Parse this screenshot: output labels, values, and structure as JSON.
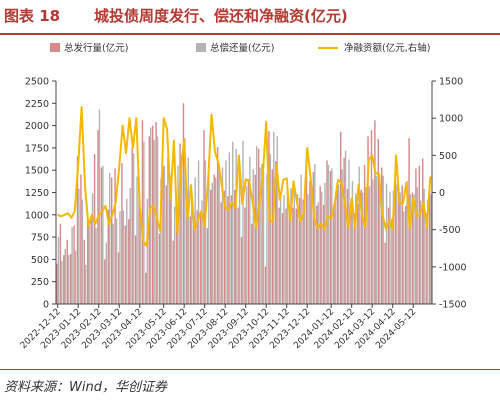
{
  "figure": {
    "label": "图表 18",
    "title": "城投债周度发行、偿还和净融资(亿元)",
    "source": "资料来源：Wind，华创证券"
  },
  "colors": {
    "issuance": "#d8898a",
    "repayment": "#b4b4b4",
    "net": "#f5b800",
    "title": "#b23a32"
  },
  "chart_data": {
    "type": "bar",
    "series": [
      {
        "name": "总发行量(亿元)",
        "type": "bar",
        "axis": "left",
        "values": [
          450,
          900,
          550,
          720,
          560,
          880,
          1660,
          1450,
          720,
          1000,
          980,
          1680,
          1950,
          1530,
          500,
          1060,
          1420,
          1520,
          580,
          1580,
          880,
          950,
          1760,
          770,
          1400,
          2060,
          350,
          1880,
          2000,
          2040,
          790,
          1540,
          1330,
          1310,
          710,
          1070,
          1800,
          2250,
          1210,
          980,
          960,
          1050,
          1010,
          1950,
          850,
          1280,
          1450,
          1760,
          1140,
          1270,
          1210,
          1220,
          1280,
          1080,
          750,
          1080,
          1400,
          900,
          1450,
          1740,
          1570,
          420,
          1940,
          1510,
          1600,
          1080,
          1020,
          1070,
          1100,
          1080,
          1070,
          1190,
          1170,
          1600,
          1380,
          1480,
          1100,
          1320,
          1110,
          1610,
          1490,
          1100,
          1300,
          1930,
          1640,
          1290,
          1110,
          1020,
          1120,
          1280,
          1560,
          1880,
          1950,
          2060,
          1850,
          1530,
          690,
          1080,
          960,
          1600,
          1250,
          1330,
          1100,
          1860,
          1250,
          1520,
          1550,
          1630,
          1020,
          1310
        ]
      },
      {
        "name": "总偿还量(亿元)",
        "type": "bar",
        "axis": "left",
        "values": [
          750,
          480,
          620,
          550,
          860,
          600,
          1290,
          1170,
          440,
          870,
          1240,
          850,
          2180,
          1550,
          690,
          1470,
          900,
          960,
          1040,
          1050,
          1180,
          1300,
          1690,
          1430,
          960,
          1820,
          1180,
          1980,
          1840,
          1880,
          1410,
          1550,
          1650,
          1450,
          1090,
          1550,
          1670,
          1860,
          1640,
          1240,
          1420,
          1610,
          1160,
          1610,
          1530,
          1360,
          1420,
          1560,
          1530,
          1610,
          1700,
          1820,
          1740,
          1510,
          1830,
          1320,
          1650,
          1510,
          1770,
          1530,
          1480,
          1460,
          1680,
          1930,
          1880,
          1240,
          1220,
          1320,
          1300,
          1270,
          1230,
          1450,
          1130,
          1230,
          1300,
          1570,
          1140,
          1260,
          1360,
          1560,
          1520,
          1160,
          1340,
          1510,
          1720,
          1620,
          1380,
          1240,
          1540,
          1250,
          1310,
          1320,
          1400,
          1440,
          1330,
          1440,
          1350,
          1260,
          1270,
          1340,
          1250,
          1040,
          1380,
          1230,
          1230,
          1310,
          1160,
          1290,
          1170,
          1230
        ]
      },
      {
        "name": "净融资额(亿元,右轴)",
        "type": "line",
        "axis": "right",
        "values": [
          -300,
          -320,
          -300,
          -280,
          -340,
          -250,
          380,
          1150,
          80,
          -450,
          -300,
          -420,
          -310,
          -250,
          -180,
          -430,
          -300,
          -130,
          350,
          900,
          530,
          1000,
          600,
          1000,
          -180,
          -650,
          -720,
          -210,
          -180,
          -350,
          -520,
          1000,
          850,
          -90,
          700,
          -540,
          300,
          700,
          -350,
          100,
          -500,
          -370,
          -250,
          -450,
          150,
          1050,
          550,
          400,
          100,
          -200,
          -230,
          -130,
          -210,
          500,
          -150,
          180,
          150,
          -120,
          -470,
          -150,
          230,
          950,
          -380,
          -390,
          380,
          -100,
          170,
          190,
          -380,
          150,
          -130,
          -390,
          -270,
          600,
          190,
          -330,
          -480,
          -420,
          -500,
          -320,
          -350,
          -160,
          170,
          130,
          -140,
          -470,
          -80,
          -480,
          100,
          -310,
          -470,
          440,
          500,
          260,
          250,
          -300,
          -490,
          -380,
          -500,
          500,
          -140,
          -150,
          130,
          -480,
          -70,
          -320,
          -300,
          -130,
          -470,
          210
        ]
      }
    ],
    "x_tick_labels": [
      "2022-12-12",
      "2023-01-12",
      "2023-02-12",
      "2023-03-12",
      "2023-04-12",
      "2023-05-12",
      "2023-06-12",
      "2023-07-12",
      "2023-08-12",
      "2023-09-12",
      "2023-10-12",
      "2023-11-12",
      "2023-12-12",
      "2024-01-12",
      "2024-02-12",
      "2024-03-12",
      "2024-04-12",
      "2024-05-12"
    ],
    "y_left": {
      "min": 0,
      "max": 2500,
      "ticks": [
        0,
        250,
        500,
        750,
        1000,
        1250,
        1500,
        1750,
        2000,
        2250,
        2500
      ]
    },
    "y_right": {
      "min": -1500,
      "max": 1500,
      "ticks": [
        -1500,
        -1000,
        -500,
        0,
        500,
        1000,
        1500
      ]
    },
    "legend": "top",
    "grid": false
  }
}
